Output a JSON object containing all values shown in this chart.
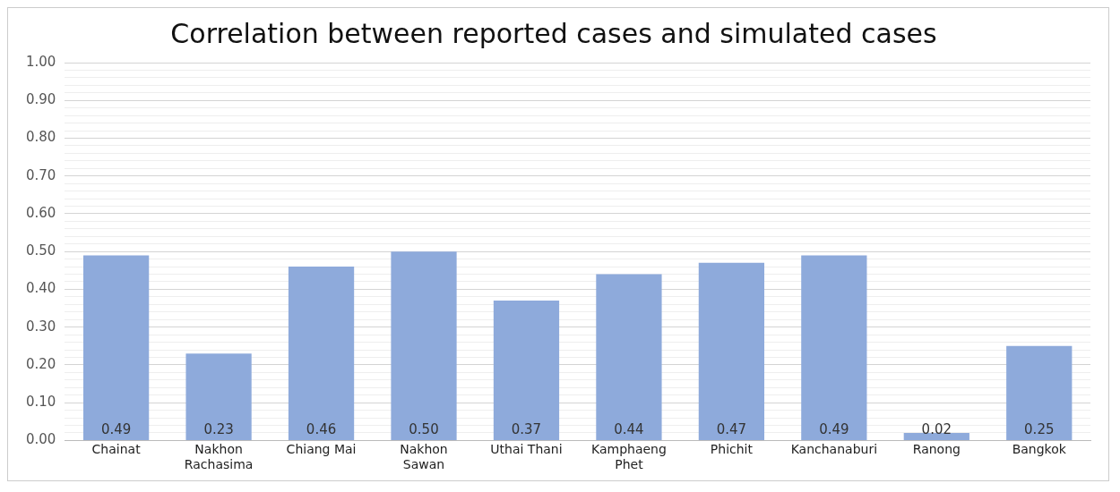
{
  "chart_data": {
    "type": "bar",
    "title": "Correlation between reported cases and simulated cases",
    "categories": [
      "Chainat",
      "Nakhon\nRachasima",
      "Chiang Mai",
      "Nakhon\nSawan",
      "Uthai Thani",
      "Kamphaeng\nPhet",
      "Phichit",
      "Kanchanaburi",
      "Ranong",
      "Bangkok"
    ],
    "values": [
      0.49,
      0.23,
      0.46,
      0.5,
      0.37,
      0.44,
      0.47,
      0.49,
      0.02,
      0.25
    ],
    "value_labels": [
      "0.49",
      "0.23",
      "0.46",
      "0.50",
      "0.37",
      "0.44",
      "0.47",
      "0.49",
      "0.02",
      "0.25"
    ],
    "color": "#8eaadb",
    "ylim": [
      0,
      1
    ],
    "yticks": [
      {
        "value": 0,
        "label": "0.00"
      },
      {
        "value": 0.02,
        "label": null
      },
      {
        "value": 0.04,
        "label": null
      },
      {
        "value": 0.06,
        "label": null
      },
      {
        "value": 0.08,
        "label": null
      },
      {
        "value": 0.1,
        "label": "0.10"
      },
      {
        "value": 0.12,
        "label": null
      },
      {
        "value": 0.14,
        "label": null
      },
      {
        "value": 0.16,
        "label": null
      },
      {
        "value": 0.18,
        "label": null
      },
      {
        "value": 0.2,
        "label": "0.20"
      },
      {
        "value": 0.22,
        "label": null
      },
      {
        "value": 0.24,
        "label": null
      },
      {
        "value": 0.26,
        "label": null
      },
      {
        "value": 0.28,
        "label": null
      },
      {
        "value": 0.3,
        "label": "0.30"
      },
      {
        "value": 0.32,
        "label": null
      },
      {
        "value": 0.34,
        "label": null
      },
      {
        "value": 0.36,
        "label": null
      },
      {
        "value": 0.38,
        "label": null
      },
      {
        "value": 0.4,
        "label": "0.40"
      },
      {
        "value": 0.42,
        "label": null
      },
      {
        "value": 0.44,
        "label": null
      },
      {
        "value": 0.46,
        "label": null
      },
      {
        "value": 0.48,
        "label": null
      },
      {
        "value": 0.5,
        "label": "0.50"
      },
      {
        "value": 0.52,
        "label": null
      },
      {
        "value": 0.54,
        "label": null
      },
      {
        "value": 0.56,
        "label": null
      },
      {
        "value": 0.58,
        "label": null
      },
      {
        "value": 0.6,
        "label": "0.60"
      },
      {
        "value": 0.62,
        "label": null
      },
      {
        "value": 0.64,
        "label": null
      },
      {
        "value": 0.66,
        "label": null
      },
      {
        "value": 0.68,
        "label": null
      },
      {
        "value": 0.7,
        "label": "0.70"
      },
      {
        "value": 0.72,
        "label": null
      },
      {
        "value": 0.74,
        "label": null
      },
      {
        "value": 0.76,
        "label": null
      },
      {
        "value": 0.78,
        "label": null
      },
      {
        "value": 0.8,
        "label": "0.80"
      },
      {
        "value": 0.82,
        "label": null
      },
      {
        "value": 0.84,
        "label": null
      },
      {
        "value": 0.86,
        "label": null
      },
      {
        "value": 0.88,
        "label": null
      },
      {
        "value": 0.9,
        "label": "0.90"
      },
      {
        "value": 0.92,
        "label": null
      },
      {
        "value": 0.94,
        "label": null
      },
      {
        "value": 0.96,
        "label": null
      },
      {
        "value": 0.98,
        "label": null
      },
      {
        "value": 1,
        "label": "1.00"
      }
    ],
    "grid": "y",
    "legend": false
  }
}
